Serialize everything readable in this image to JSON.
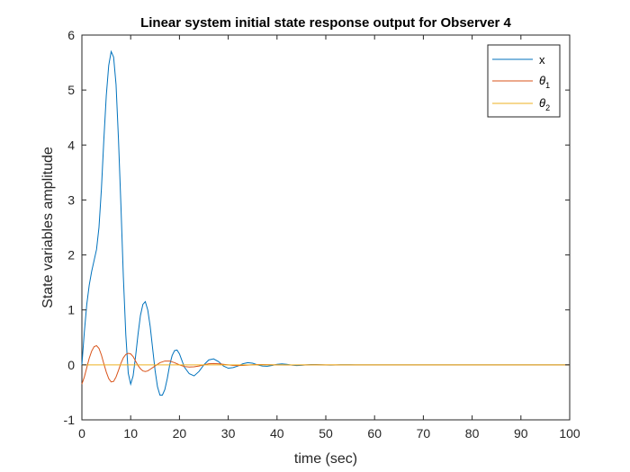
{
  "chart_data": {
    "type": "line",
    "title": "Linear system initial state response output for Observer 4",
    "xlabel": "time (sec)",
    "ylabel": "State variables amplitude",
    "xlim": [
      0,
      100
    ],
    "ylim": [
      -1,
      6
    ],
    "xticks": [
      0,
      10,
      20,
      30,
      40,
      50,
      60,
      70,
      80,
      90,
      100
    ],
    "yticks": [
      -1,
      0,
      1,
      2,
      3,
      4,
      5,
      6
    ],
    "grid": false,
    "legend_position": "top-right",
    "series": [
      {
        "name": "x",
        "legend_base": "x",
        "legend_sub": "",
        "color": "#0072BD",
        "x": [
          0,
          0.5,
          1,
          1.5,
          2,
          2.5,
          3,
          3.5,
          4,
          4.5,
          5,
          5.5,
          6,
          6.5,
          7,
          7.5,
          8,
          8.5,
          9,
          9.5,
          10,
          10.5,
          11,
          11.5,
          12,
          12.5,
          13,
          13.5,
          14,
          14.5,
          15,
          15.5,
          16,
          16.5,
          17,
          17.5,
          18,
          18.5,
          19,
          19.5,
          20,
          20.5,
          21,
          22,
          23,
          24,
          25,
          26,
          27,
          28,
          29,
          30,
          31,
          32,
          33,
          34,
          35,
          36,
          37,
          38,
          39,
          40,
          41,
          42,
          43,
          44,
          45,
          46,
          47,
          48,
          49,
          50,
          51,
          52,
          53,
          54,
          55,
          56,
          57,
          58,
          59,
          60,
          61,
          62,
          63,
          64,
          65,
          66,
          68,
          70,
          75,
          80,
          90,
          100
        ],
        "y": [
          0,
          0.6,
          1.1,
          1.45,
          1.7,
          1.9,
          2.1,
          2.5,
          3.2,
          4.1,
          4.9,
          5.45,
          5.7,
          5.6,
          5.1,
          4.1,
          2.9,
          1.6,
          0.55,
          -0.15,
          -0.35,
          -0.2,
          0.15,
          0.55,
          0.9,
          1.1,
          1.15,
          1.0,
          0.7,
          0.3,
          -0.1,
          -0.4,
          -0.55,
          -0.55,
          -0.45,
          -0.25,
          0.0,
          0.17,
          0.26,
          0.27,
          0.2,
          0.08,
          -0.04,
          -0.16,
          -0.2,
          -0.12,
          0.0,
          0.09,
          0.11,
          0.06,
          -0.02,
          -0.06,
          -0.05,
          -0.02,
          0.02,
          0.04,
          0.03,
          0.0,
          -0.02,
          -0.025,
          -0.01,
          0.01,
          0.018,
          0.01,
          -0.005,
          -0.012,
          -0.008,
          0.0,
          0.006,
          0.006,
          0.002,
          -0.003,
          -0.004,
          -0.002,
          0.001,
          0.002,
          0.001,
          0.0,
          -0.001,
          -0.001,
          0.0,
          0.0,
          0.0,
          0.0,
          0.0,
          0.0,
          0.0,
          0.0,
          0.0,
          0.0,
          0.0,
          0.0,
          0.0,
          0.0
        ]
      },
      {
        "name": "θ1",
        "legend_base": "θ",
        "legend_sub": "1",
        "color": "#D95319",
        "x": [
          0,
          0.5,
          1,
          1.5,
          2,
          2.5,
          3,
          3.5,
          4,
          4.5,
          5,
          5.5,
          6,
          6.5,
          7,
          7.5,
          8,
          8.5,
          9,
          9.5,
          10,
          10.5,
          11,
          11.5,
          12,
          12.5,
          13,
          13.5,
          14,
          15,
          16,
          17,
          18,
          19,
          20,
          21,
          22,
          23,
          24,
          25,
          26,
          27,
          28,
          29,
          30,
          31,
          32,
          33,
          34,
          35,
          36,
          37,
          38,
          40,
          42,
          44,
          46,
          48,
          50,
          55,
          60,
          70,
          80,
          90,
          100
        ],
        "y": [
          -0.35,
          -0.22,
          -0.05,
          0.12,
          0.25,
          0.33,
          0.35,
          0.3,
          0.18,
          0.02,
          -0.13,
          -0.25,
          -0.31,
          -0.3,
          -0.22,
          -0.1,
          0.03,
          0.13,
          0.19,
          0.21,
          0.2,
          0.15,
          0.07,
          -0.01,
          -0.07,
          -0.11,
          -0.12,
          -0.11,
          -0.08,
          -0.02,
          0.04,
          0.07,
          0.07,
          0.04,
          0.0,
          -0.03,
          -0.04,
          -0.035,
          -0.02,
          0.0,
          0.02,
          0.025,
          0.02,
          0.01,
          0.0,
          -0.01,
          -0.013,
          -0.01,
          -0.004,
          0.002,
          0.006,
          0.006,
          0.004,
          0.0,
          -0.003,
          -0.002,
          0.0,
          0.001,
          0.0,
          0.0,
          0.0,
          0.0,
          0.0,
          0.0,
          0.0
        ]
      },
      {
        "name": "θ2",
        "legend_base": "θ",
        "legend_sub": "2",
        "color": "#EDB120",
        "x": [
          0,
          100
        ],
        "y": [
          0,
          0
        ]
      }
    ]
  }
}
